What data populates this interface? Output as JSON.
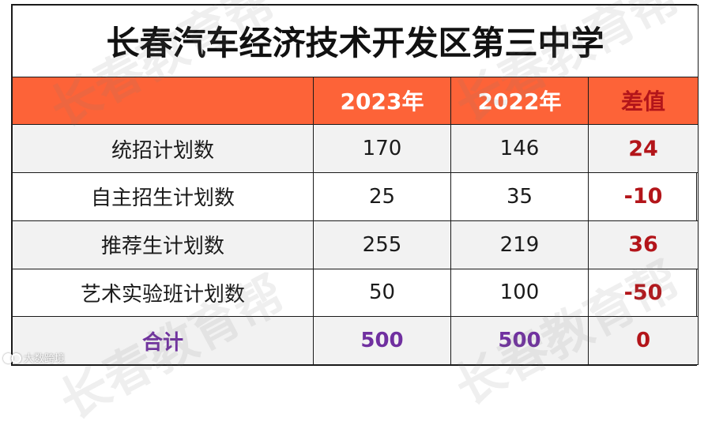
{
  "title": "长春汽车经济技术开发区第三中学",
  "headers": [
    "",
    "2023年",
    "2022年",
    "差值"
  ],
  "rows": [
    {
      "label": "统招计划数",
      "y2023": "170",
      "y2022": "146",
      "diff": "24"
    },
    {
      "label": "自主招生计划数",
      "y2023": "25",
      "y2022": "35",
      "diff": "-10"
    },
    {
      "label": "推荐生计划数",
      "y2023": "255",
      "y2022": "219",
      "diff": "36"
    },
    {
      "label": "艺术实验班计划数",
      "y2023": "50",
      "y2022": "100",
      "diff": "-50"
    }
  ],
  "total": {
    "label": "合计",
    "y2023": "500",
    "y2022": "500",
    "diff": "0"
  },
  "watermark": "长春教育帮",
  "logo_text": "大数跨境",
  "colors": {
    "header_bg": "#fd6338",
    "diff_text": "#b3151a",
    "total_text": "#7030a0",
    "alt_row_bg": "#f2f2f2"
  }
}
